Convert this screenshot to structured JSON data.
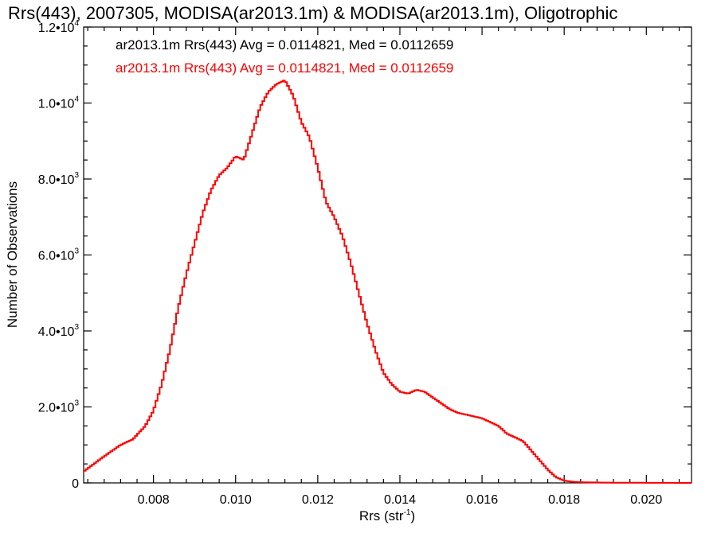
{
  "chart_data": {
    "type": "line",
    "title": "Rrs(443), 2007305, MODISA(ar2013.1m) & MODISA(ar2013.1m), Oligotrophic",
    "xlabel": "Rrs (str",
    "xlabel_sup": "-1",
    "xlabel_end": ")",
    "ylabel": "Number of Observations",
    "xlim": [
      0.0063,
      0.0211
    ],
    "ylim": [
      0,
      12000
    ],
    "x_ticks": [
      {
        "value": 0.008,
        "label": "0.008"
      },
      {
        "value": 0.01,
        "label": "0.010"
      },
      {
        "value": 0.012,
        "label": "0.012"
      },
      {
        "value": 0.014,
        "label": "0.014"
      },
      {
        "value": 0.016,
        "label": "0.016"
      },
      {
        "value": 0.018,
        "label": "0.018"
      },
      {
        "value": 0.02,
        "label": "0.020"
      }
    ],
    "y_ticks": [
      {
        "value": 0,
        "label": "0",
        "sup": ""
      },
      {
        "value": 2000,
        "label": "2.0•10",
        "sup": "3"
      },
      {
        "value": 4000,
        "label": "4.0•10",
        "sup": "3"
      },
      {
        "value": 6000,
        "label": "6.0•10",
        "sup": "3"
      },
      {
        "value": 8000,
        "label": "8.0•10",
        "sup": "3"
      },
      {
        "value": 10000,
        "label": "1.0•10",
        "sup": "4"
      },
      {
        "value": 12000,
        "label": "1.2•10",
        "sup": "4"
      }
    ],
    "annotations": [
      {
        "text": "ar2013.1m Rrs(443) Avg = 0.0114821, Med = 0.0112659",
        "color": "#000000"
      },
      {
        "text": "ar2013.1m Rrs(443) Avg = 0.0114821, Med = 0.0112659",
        "color": "#ff0000"
      }
    ],
    "series": [
      {
        "color": "#ff0000",
        "step": true,
        "points": [
          [
            0.0063,
            300
          ],
          [
            0.0068,
            700
          ],
          [
            0.0072,
            1000
          ],
          [
            0.0075,
            1150
          ],
          [
            0.0078,
            1500
          ],
          [
            0.008,
            1900
          ],
          [
            0.0082,
            2600
          ],
          [
            0.0084,
            3500
          ],
          [
            0.0086,
            4600
          ],
          [
            0.0088,
            5500
          ],
          [
            0.009,
            6300
          ],
          [
            0.0092,
            7100
          ],
          [
            0.0094,
            7700
          ],
          [
            0.0096,
            8100
          ],
          [
            0.0098,
            8300
          ],
          [
            0.01,
            8600
          ],
          [
            0.0102,
            8500
          ],
          [
            0.0104,
            9200
          ],
          [
            0.0106,
            9900
          ],
          [
            0.0108,
            10300
          ],
          [
            0.011,
            10500
          ],
          [
            0.0112,
            10600
          ],
          [
            0.0114,
            10200
          ],
          [
            0.0116,
            9500
          ],
          [
            0.0118,
            9100
          ],
          [
            0.012,
            8300
          ],
          [
            0.0122,
            7400
          ],
          [
            0.0124,
            7000
          ],
          [
            0.0126,
            6500
          ],
          [
            0.0128,
            5800
          ],
          [
            0.013,
            5000
          ],
          [
            0.0132,
            4200
          ],
          [
            0.0134,
            3500
          ],
          [
            0.0136,
            2900
          ],
          [
            0.0138,
            2600
          ],
          [
            0.014,
            2400
          ],
          [
            0.0142,
            2350
          ],
          [
            0.0144,
            2450
          ],
          [
            0.0146,
            2400
          ],
          [
            0.0148,
            2250
          ],
          [
            0.015,
            2100
          ],
          [
            0.0152,
            1950
          ],
          [
            0.0154,
            1850
          ],
          [
            0.0156,
            1800
          ],
          [
            0.0158,
            1750
          ],
          [
            0.016,
            1700
          ],
          [
            0.0162,
            1600
          ],
          [
            0.0164,
            1500
          ],
          [
            0.0166,
            1300
          ],
          [
            0.0168,
            1200
          ],
          [
            0.017,
            1100
          ],
          [
            0.0172,
            850
          ],
          [
            0.0174,
            600
          ],
          [
            0.0176,
            350
          ],
          [
            0.0178,
            150
          ],
          [
            0.018,
            60
          ],
          [
            0.0182,
            30
          ],
          [
            0.0185,
            15
          ],
          [
            0.019,
            8
          ],
          [
            0.02,
            3
          ],
          [
            0.0211,
            0
          ]
        ]
      }
    ]
  }
}
